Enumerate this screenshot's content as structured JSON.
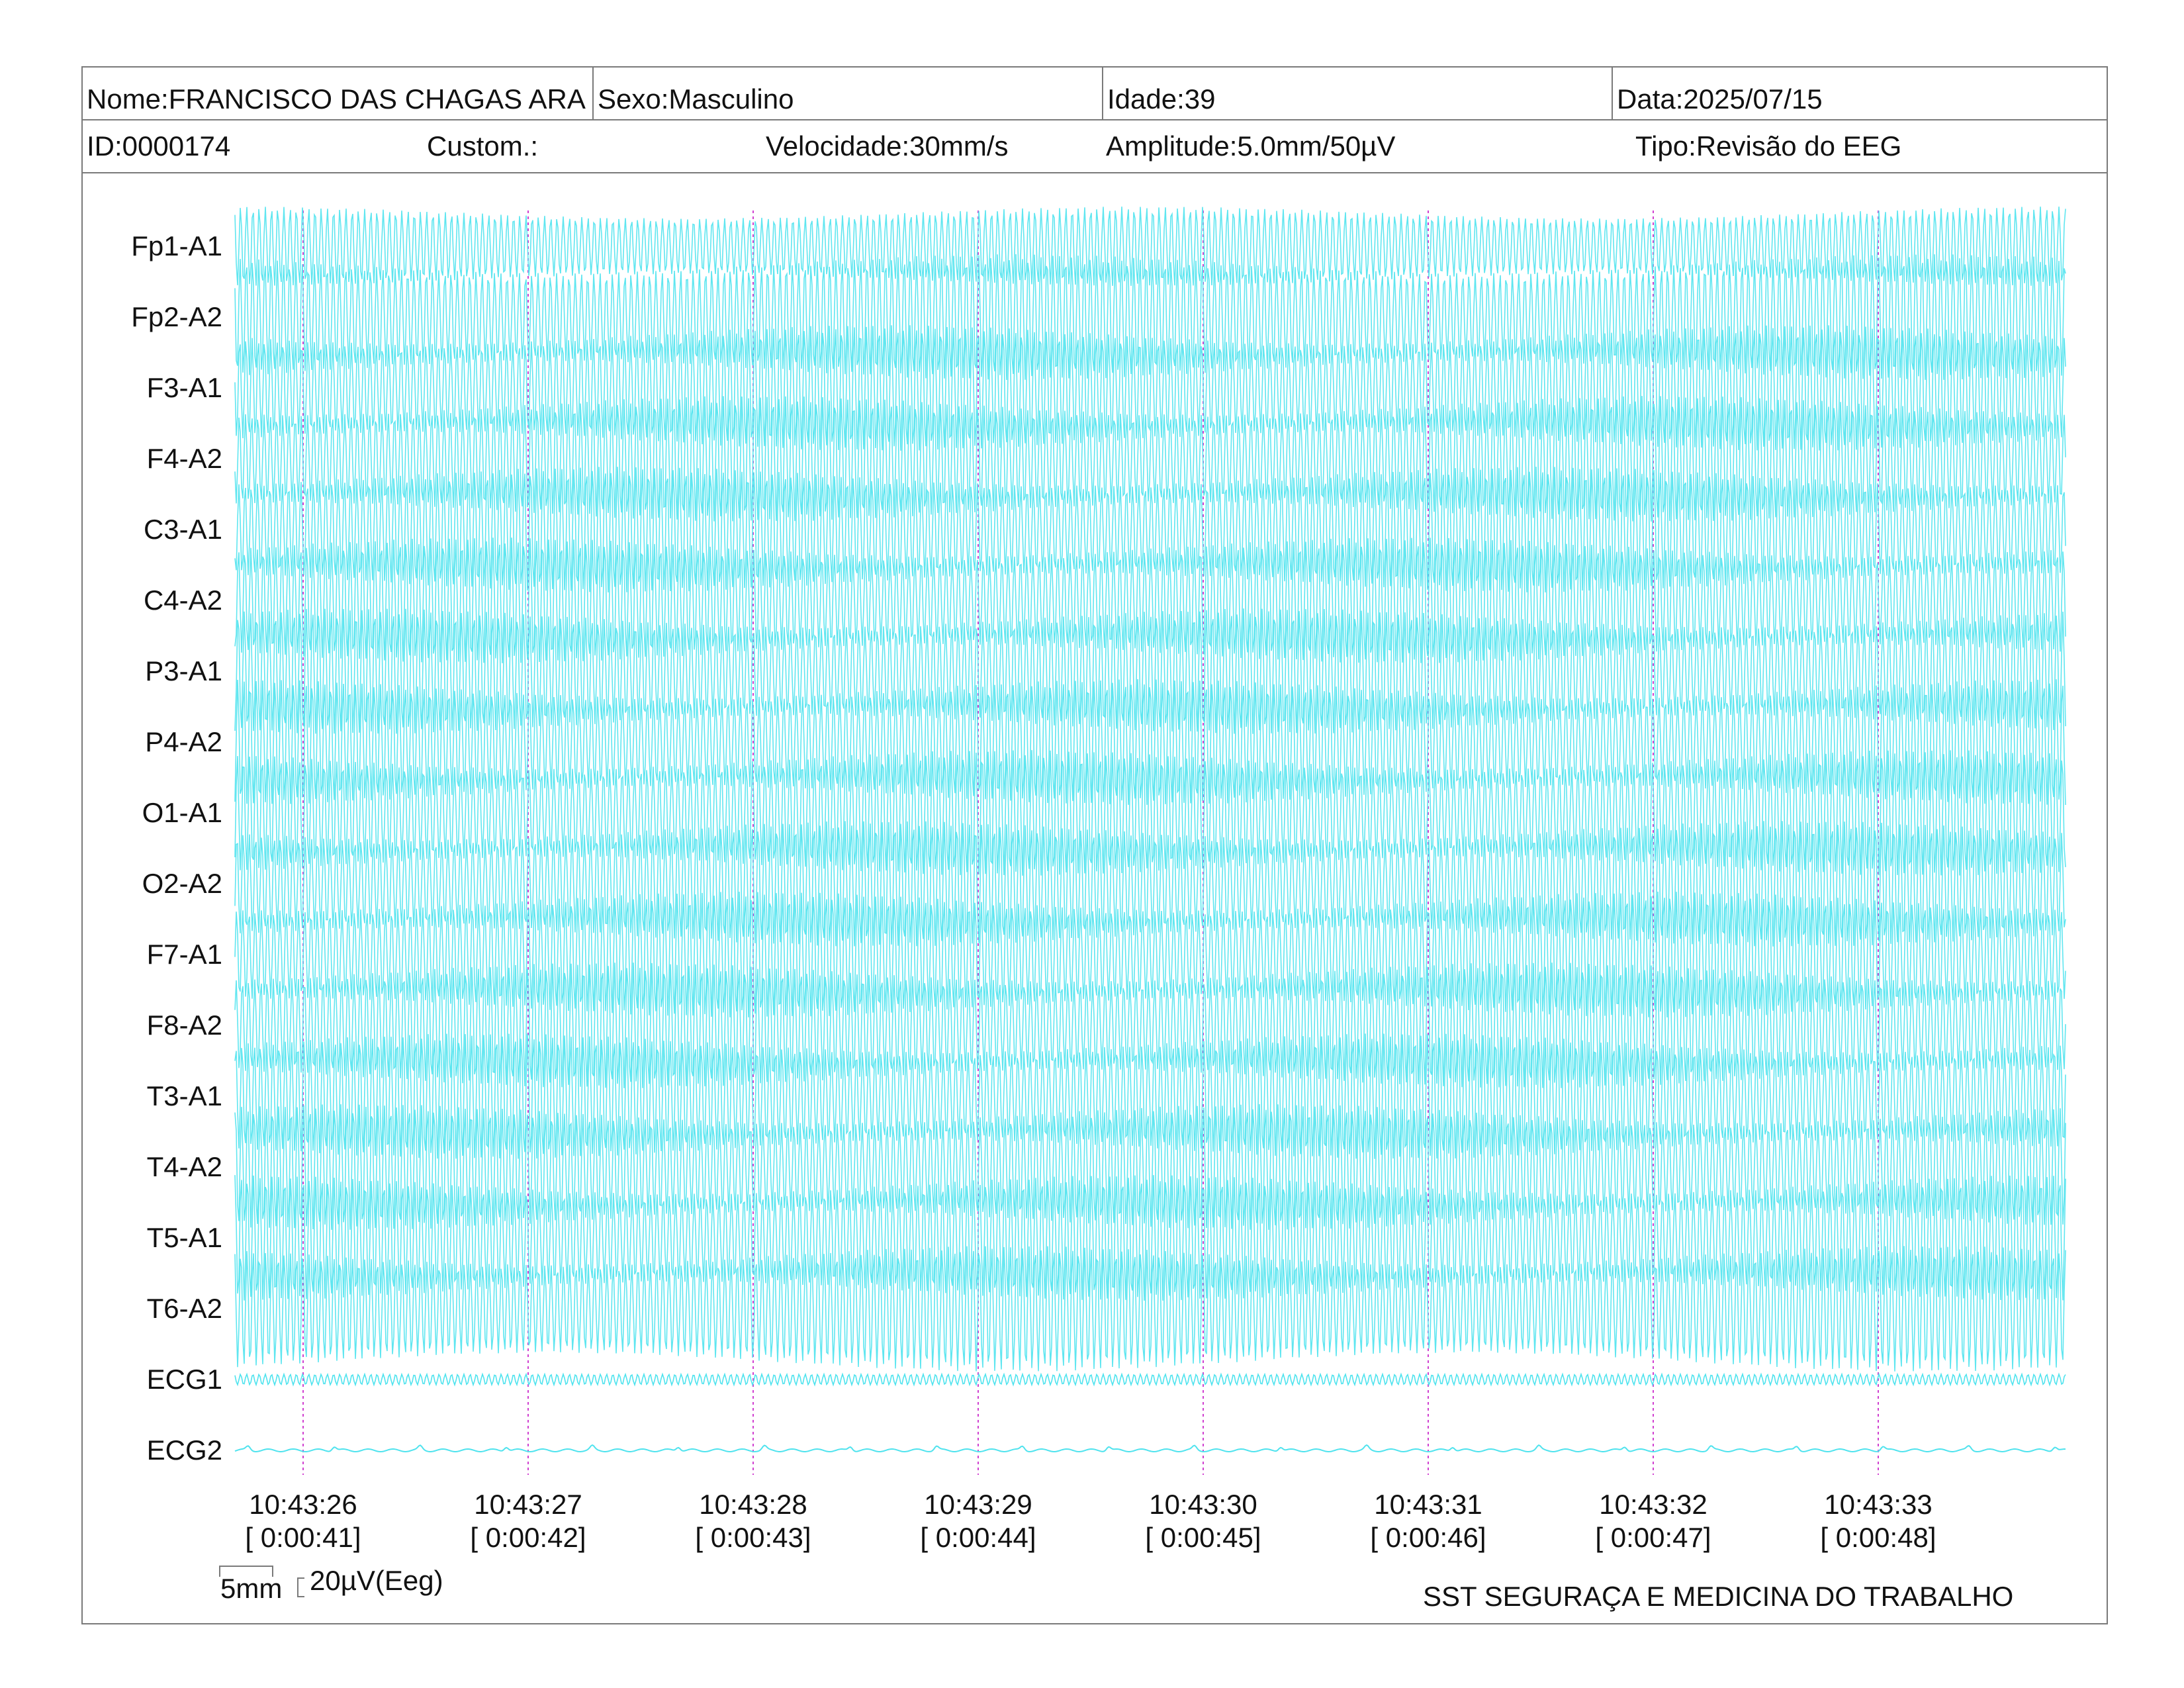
{
  "header": {
    "nome": "Nome:FRANCISCO DAS CHAGAS ARA",
    "sexo": "Sexo:Masculino",
    "idade": "Idade:39",
    "data": "Data:2025/07/15",
    "id": "ID:0000174",
    "custom": "Custom.:",
    "velocidade": "Velocidade:30mm/s",
    "amplitude": "Amplitude:5.0mm/50µV",
    "tipo": "Tipo:Revisão do EEG"
  },
  "channels": [
    "Fp1-A1",
    "Fp2-A2",
    "F3-A1",
    "F4-A2",
    "C3-A1",
    "C4-A2",
    "P3-A1",
    "P4-A2",
    "O1-A1",
    "O2-A2",
    "F7-A1",
    "F8-A2",
    "T3-A1",
    "T4-A2",
    "T5-A1",
    "T6-A2",
    "ECG1",
    "ECG2"
  ],
  "time_marks": [
    {
      "clock": "10:43:26",
      "elapsed": "[ 0:00:41]"
    },
    {
      "clock": "10:43:27",
      "elapsed": "[ 0:00:42]"
    },
    {
      "clock": "10:43:28",
      "elapsed": "[ 0:00:43]"
    },
    {
      "clock": "10:43:29",
      "elapsed": "[ 0:00:44]"
    },
    {
      "clock": "10:43:30",
      "elapsed": "[ 0:00:45]"
    },
    {
      "clock": "10:43:31",
      "elapsed": "[ 0:00:46]"
    },
    {
      "clock": "10:43:32",
      "elapsed": "[ 0:00:47]"
    },
    {
      "clock": "10:43:33",
      "elapsed": "[ 0:00:48]"
    }
  ],
  "scale": {
    "time": "5mm",
    "amplitude": "20µV(Eeg)"
  },
  "footer": {
    "company": "SST SEGURAÇA E MEDICINA DO TRABALHO"
  },
  "colors": {
    "trace": "#4fe3ee",
    "marker": "#d040d0",
    "border": "#7a7a7a"
  }
}
